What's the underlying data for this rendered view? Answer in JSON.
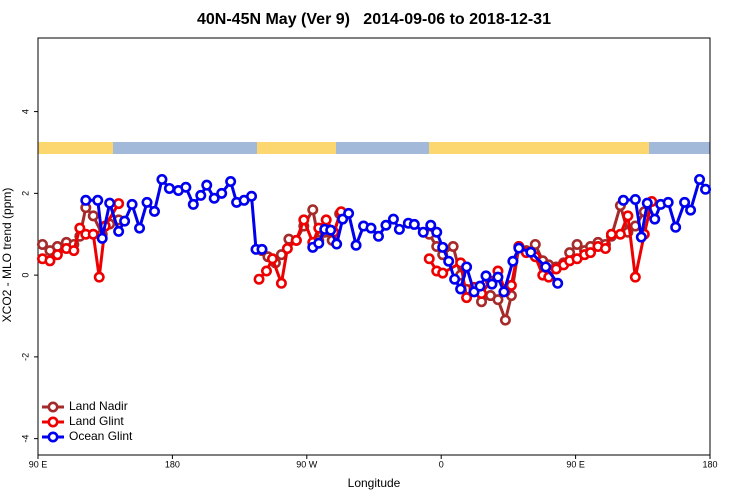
{
  "chart_data": {
    "type": "line",
    "title": "40N-45N May (Ver 9)   2014-09-06 to 2018-12-31",
    "xlabel": "Longitude",
    "ylabel": "XCO2 - MLO trend (ppm)",
    "xlim": [
      90,
      540
    ],
    "ylim": [
      -4.4,
      5.8
    ],
    "xticks": [
      {
        "value": 90,
        "label": "90 E"
      },
      180,
      {
        "value": 270,
        "label": "90 W"
      },
      {
        "value": 360,
        "label": "0"
      },
      {
        "value": 450,
        "label": "90 E"
      },
      {
        "value": 540,
        "label": "180"
      }
    ],
    "yticks": [
      -4,
      -2,
      0,
      2,
      4
    ],
    "legend": "lower left",
    "series": [
      {
        "name": "Land Nadir",
        "color": "#a52a2a",
        "x": [
          93,
          98,
          103,
          109,
          114,
          118,
          122,
          127,
          133,
          138,
          144,
          null,
          240,
          244,
          249,
          253,
          258,
          263,
          268,
          274,
          278,
          282,
          287,
          292,
          null,
          352,
          357,
          361,
          368,
          373,
          377,
          382,
          387,
          393,
          398,
          403,
          407,
          412,
          417,
          423,
          428,
          432,
          437,
          442,
          446,
          451,
          456,
          460,
          465,
          470,
          474,
          480,
          485,
          490,
          496
        ],
        "values": [
          0.75,
          0.6,
          0.7,
          0.8,
          0.75,
          0.95,
          1.65,
          1.45,
          1.0,
          1.25,
          1.35,
          null,
          0.6,
          0.45,
          0.3,
          0.5,
          0.88,
          0.85,
          1.2,
          1.6,
          0.85,
          1.05,
          0.85,
          1.5,
          null,
          1.0,
          0.7,
          0.5,
          0.7,
          0.0,
          -0.35,
          -0.35,
          -0.65,
          -0.5,
          -0.6,
          -1.1,
          -0.5,
          0.7,
          0.6,
          0.75,
          0.35,
          0.25,
          0.2,
          0.3,
          0.55,
          0.75,
          0.6,
          0.7,
          0.8,
          0.75,
          0.95,
          1.7,
          1.05,
          1.2,
          1.55
        ]
      },
      {
        "name": "Land Glint",
        "color": "#ee0000",
        "x": [
          93,
          98,
          103,
          109,
          114,
          118,
          122,
          127,
          131,
          135,
          144,
          null,
          238,
          243,
          247,
          253,
          257,
          263,
          268,
          274,
          278,
          283,
          288,
          293,
          null,
          352,
          357,
          361,
          373,
          377,
          382,
          387,
          393,
          398,
          403,
          407,
          412,
          417,
          423,
          428,
          432,
          437,
          442,
          446,
          451,
          456,
          460,
          465,
          470,
          474,
          480,
          485,
          490,
          496,
          501
        ],
        "values": [
          0.4,
          0.35,
          0.5,
          0.65,
          0.6,
          1.15,
          1.0,
          1.0,
          -0.05,
          1.2,
          1.75,
          null,
          -0.1,
          0.1,
          0.4,
          -0.2,
          0.65,
          0.85,
          1.35,
          0.8,
          1.15,
          1.35,
          1.05,
          1.55,
          null,
          0.4,
          0.1,
          0.05,
          0.3,
          -0.55,
          -0.3,
          -0.45,
          -0.15,
          0.1,
          -0.4,
          -0.25,
          0.7,
          0.55,
          0.45,
          0.0,
          -0.05,
          0.15,
          0.25,
          0.35,
          0.4,
          0.5,
          0.55,
          0.7,
          0.65,
          1.0,
          1.0,
          1.45,
          -0.05,
          1.0,
          1.8
        ]
      },
      {
        "name": "Ocean Glint",
        "color": "#0000ee",
        "x": [
          122,
          130,
          133,
          138,
          144,
          148,
          153,
          158,
          163,
          168,
          173,
          178,
          184,
          189,
          194,
          199,
          203,
          208,
          213,
          219,
          223,
          228,
          233,
          236,
          240,
          null,
          274,
          278,
          282,
          286,
          290,
          294,
          298,
          303,
          308,
          313,
          318,
          323,
          328,
          332,
          338,
          342,
          348,
          353,
          357,
          361,
          365,
          369,
          373,
          377,
          382,
          386,
          390,
          394,
          398,
          402,
          408,
          412,
          420,
          430,
          438,
          null,
          482,
          490,
          494,
          498,
          503,
          507,
          512,
          517,
          523,
          527,
          533,
          537
        ],
        "values": [
          1.83,
          1.83,
          0.9,
          1.76,
          1.07,
          1.32,
          1.73,
          1.15,
          1.78,
          1.56,
          2.34,
          2.12,
          2.07,
          2.15,
          1.73,
          1.95,
          2.2,
          1.88,
          2.0,
          2.29,
          1.78,
          1.83,
          1.93,
          0.63,
          0.63,
          null,
          0.68,
          0.78,
          1.12,
          1.1,
          0.76,
          1.37,
          1.51,
          0.73,
          1.2,
          1.15,
          0.95,
          1.22,
          1.37,
          1.12,
          1.27,
          1.24,
          1.05,
          1.22,
          1.05,
          0.68,
          0.34,
          -0.1,
          -0.34,
          0.2,
          -0.41,
          -0.27,
          -0.02,
          -0.22,
          -0.05,
          -0.41,
          0.34,
          0.66,
          0.56,
          0.2,
          -0.2,
          null,
          1.83,
          1.85,
          0.93,
          1.76,
          1.37,
          1.73,
          1.78,
          1.17,
          1.78,
          1.59,
          2.34,
          2.1
        ]
      }
    ]
  }
}
